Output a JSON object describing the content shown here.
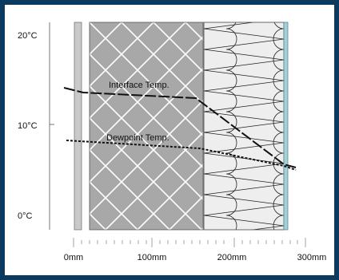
{
  "y_axis": {
    "labels": [
      {
        "text": "20°C",
        "value": 20
      },
      {
        "text": "10°C",
        "value": 10
      },
      {
        "text": "0°C",
        "value": 0
      }
    ]
  },
  "x_axis": {
    "labels": [
      {
        "text": "0mm",
        "value": 0
      },
      {
        "text": "100mm",
        "value": 100
      },
      {
        "text": "200mm",
        "value": 200
      },
      {
        "text": "300mm",
        "value": 300
      }
    ]
  },
  "annotations": {
    "interface": "Interface Temp.",
    "dewpoint": "Dewpoint Temp."
  },
  "layers": [
    {
      "id": "outer-board",
      "color": "#c9c9c9"
    },
    {
      "id": "masonry-block",
      "color": "#a8a8a8"
    },
    {
      "id": "insulation-batts",
      "color": "#eeeeee"
    },
    {
      "id": "internal-lining",
      "color": "#a9cfd6"
    }
  ],
  "colors": {
    "frame": "#0b3a5e",
    "line": "#111111"
  }
}
